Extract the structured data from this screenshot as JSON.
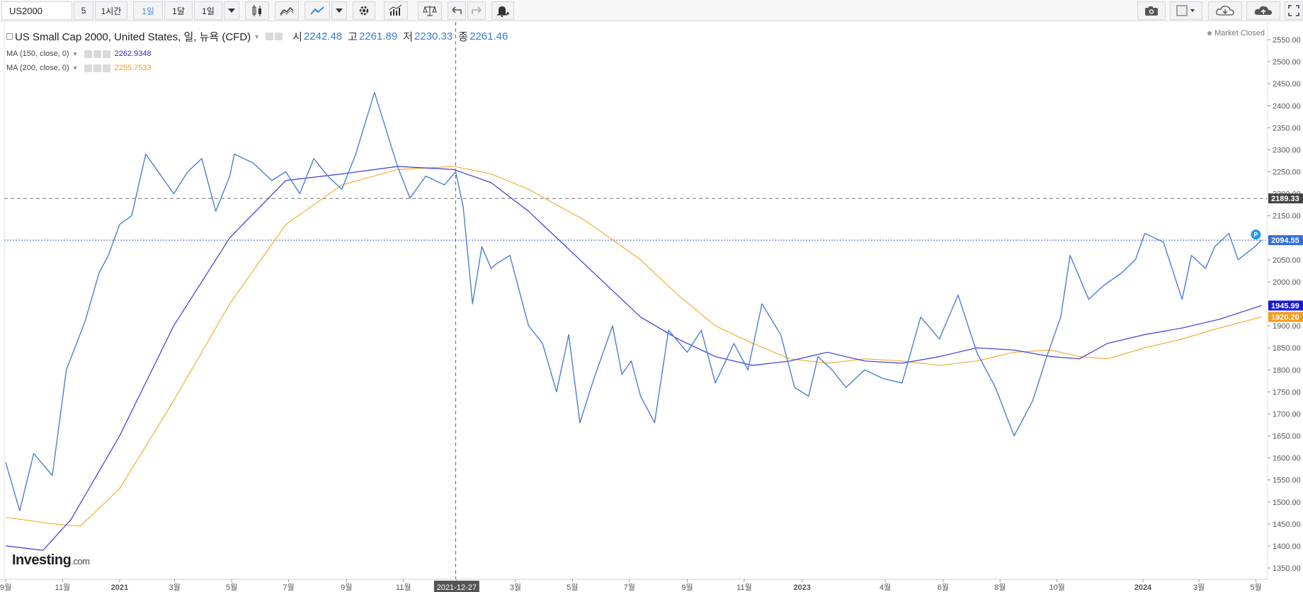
{
  "toolbar": {
    "symbol": "US2000",
    "intervals": [
      "5",
      "1시간",
      "1일",
      "1달",
      "1일"
    ],
    "active_interval_index": 2
  },
  "legend": {
    "title": "US Small Cap 2000, United States, 일, 뉴욕 (CFD)",
    "open_label": "시",
    "open": "2242.48",
    "high_label": "고",
    "high": "2261.89",
    "low_label": "저",
    "low": "2230.33",
    "close_label": "종",
    "close": "2261.46",
    "ma150_label": "MA (150, close, 0)",
    "ma150_value": "2262.9348",
    "ma200_label": "MA (200, close, 0)",
    "ma200_value": "2255.7533",
    "market_status": "Market Closed"
  },
  "logo": {
    "brand": "Investing",
    "suffix": ".com"
  },
  "colors": {
    "price": "#4a7fd6",
    "ma150": "#3b3bd6",
    "ma200": "#f5a623",
    "crosshair": "#666666",
    "last_price_line": "#3a5bdd",
    "accent": "#3a8fe0"
  },
  "chart_data": {
    "type": "line",
    "title": "US Small Cap 2000, United States, 일, 뉴욕 (CFD)",
    "ylim": [
      1350,
      2550
    ],
    "y_ticks": [
      "2550.00",
      "2500.00",
      "2450.00",
      "2400.00",
      "2350.00",
      "2300.00",
      "2250.00",
      "2200.00",
      "2150.00",
      "2100.00",
      "2050.00",
      "2000.00",
      "1950.00",
      "1900.00",
      "1850.00",
      "1800.00",
      "1750.00",
      "1700.00",
      "1650.00",
      "1600.00",
      "1550.00",
      "1500.00",
      "1450.00",
      "1400.00",
      "1350.00"
    ],
    "x_ticks": [
      "9월",
      "11월",
      "2021",
      "3월",
      "5월",
      "7월",
      "9월",
      "11월",
      "2021-12-27",
      "3월",
      "5월",
      "7월",
      "9월",
      "11월",
      "2023",
      "4월",
      "6월",
      "8월",
      "10월",
      "2024",
      "3월",
      "5월"
    ],
    "x_tick_days": [
      0,
      61,
      122,
      181,
      242,
      303,
      365,
      426,
      483,
      546,
      607,
      668,
      730,
      791,
      853,
      942,
      1004,
      1065,
      1126,
      1218,
      1278,
      1339
    ],
    "x_range_days": [
      0,
      1350
    ],
    "crosshair_day": 482,
    "price_labels": [
      {
        "text": "2189.33",
        "value": 2189.33,
        "color": "#444444"
      },
      {
        "text": "2094.55",
        "value": 2094.55,
        "color": "#2f6fe0"
      },
      {
        "text": "1945.99",
        "value": 1945.99,
        "color": "#1a1ad6"
      },
      {
        "text": "1920.20",
        "value": 1920.2,
        "color": "#f59a1b"
      }
    ],
    "series": [
      {
        "name": "US Small Cap 2000",
        "x": [
          0,
          15,
          30,
          50,
          65,
          85,
          100,
          110,
          122,
          135,
          150,
          160,
          180,
          195,
          210,
          225,
          240,
          245,
          265,
          285,
          300,
          315,
          330,
          345,
          360,
          375,
          385,
          395,
          420,
          433,
          450,
          470,
          482,
          490,
          500,
          510,
          520,
          525,
          540,
          560,
          575,
          590,
          603,
          615,
          630,
          650,
          660,
          670,
          680,
          695,
          710,
          730,
          745,
          760,
          780,
          795,
          810,
          830,
          845,
          860,
          870,
          885,
          900,
          920,
          940,
          960,
          980,
          1000,
          1020,
          1040,
          1060,
          1080,
          1100,
          1115,
          1130,
          1140,
          1160,
          1175,
          1195,
          1210,
          1220,
          1240,
          1260,
          1270,
          1285,
          1295,
          1310,
          1320,
          1338,
          1345
        ],
        "y": [
          1590,
          1480,
          1610,
          1560,
          1800,
          1910,
          2020,
          2060,
          2130,
          2150,
          2290,
          2260,
          2200,
          2250,
          2280,
          2160,
          2240,
          2290,
          2270,
          2230,
          2250,
          2200,
          2280,
          2240,
          2210,
          2290,
          2360,
          2430,
          2260,
          2190,
          2240,
          2220,
          2250,
          2170,
          1950,
          2080,
          2030,
          2040,
          2060,
          1900,
          1860,
          1750,
          1880,
          1680,
          1780,
          1900,
          1790,
          1820,
          1740,
          1680,
          1890,
          1840,
          1890,
          1770,
          1860,
          1800,
          1950,
          1880,
          1760,
          1740,
          1830,
          1800,
          1760,
          1800,
          1780,
          1770,
          1920,
          1870,
          1970,
          1840,
          1760,
          1650,
          1730,
          1830,
          1920,
          2060,
          1960,
          1990,
          2020,
          2050,
          2110,
          2090,
          1960,
          2060,
          2030,
          2080,
          2110,
          2050,
          2080,
          2094.55
        ]
      },
      {
        "name": "MA (150, close, 0)",
        "x": [
          0,
          40,
          70,
          122,
          180,
          240,
          300,
          360,
          420,
          480,
          520,
          560,
          620,
          680,
          720,
          760,
          800,
          840,
          880,
          920,
          960,
          1000,
          1040,
          1080,
          1120,
          1150,
          1180,
          1220,
          1260,
          1300,
          1345
        ],
        "y": [
          1400,
          1390,
          1460,
          1650,
          1900,
          2100,
          2230,
          2245,
          2262,
          2255,
          2225,
          2160,
          2040,
          1920,
          1870,
          1830,
          1810,
          1820,
          1840,
          1820,
          1815,
          1830,
          1850,
          1845,
          1830,
          1825,
          1860,
          1880,
          1895,
          1915,
          1945.99
        ]
      },
      {
        "name": "MA (200, close, 0)",
        "x": [
          0,
          50,
          80,
          122,
          180,
          240,
          300,
          360,
          420,
          480,
          520,
          560,
          620,
          680,
          720,
          760,
          800,
          840,
          880,
          920,
          960,
          1000,
          1040,
          1080,
          1120,
          1150,
          1180,
          1220,
          1260,
          1300,
          1345
        ],
        "y": [
          1465,
          1450,
          1445,
          1530,
          1730,
          1950,
          2130,
          2220,
          2255,
          2262,
          2245,
          2210,
          2140,
          2050,
          1970,
          1900,
          1860,
          1825,
          1815,
          1825,
          1820,
          1810,
          1820,
          1840,
          1845,
          1830,
          1825,
          1850,
          1870,
          1895,
          1920.2
        ]
      }
    ]
  }
}
